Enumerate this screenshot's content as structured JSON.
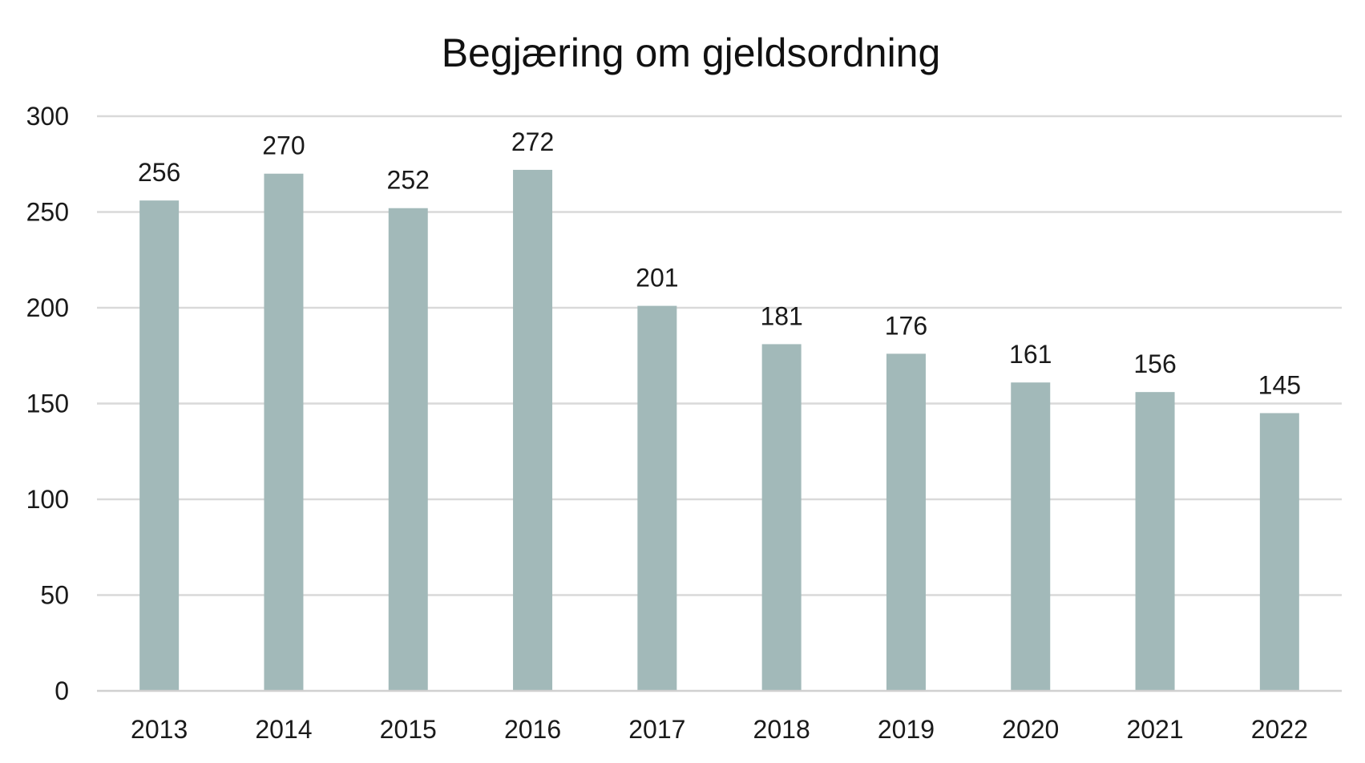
{
  "chart_data": {
    "type": "bar",
    "title": "Begjæring om gjeldsordning",
    "xlabel": "",
    "ylabel": "",
    "categories": [
      "2013",
      "2014",
      "2015",
      "2016",
      "2017",
      "2018",
      "2019",
      "2020",
      "2021",
      "2022"
    ],
    "values": [
      256,
      270,
      252,
      272,
      201,
      181,
      176,
      161,
      156,
      145
    ],
    "ylim": [
      0,
      300
    ],
    "yticks": [
      "0",
      "50",
      "100",
      "150",
      "200",
      "250",
      "300"
    ],
    "grid": true,
    "legend": "none",
    "data_labels": true,
    "bar_color": "#a2b9b9"
  }
}
